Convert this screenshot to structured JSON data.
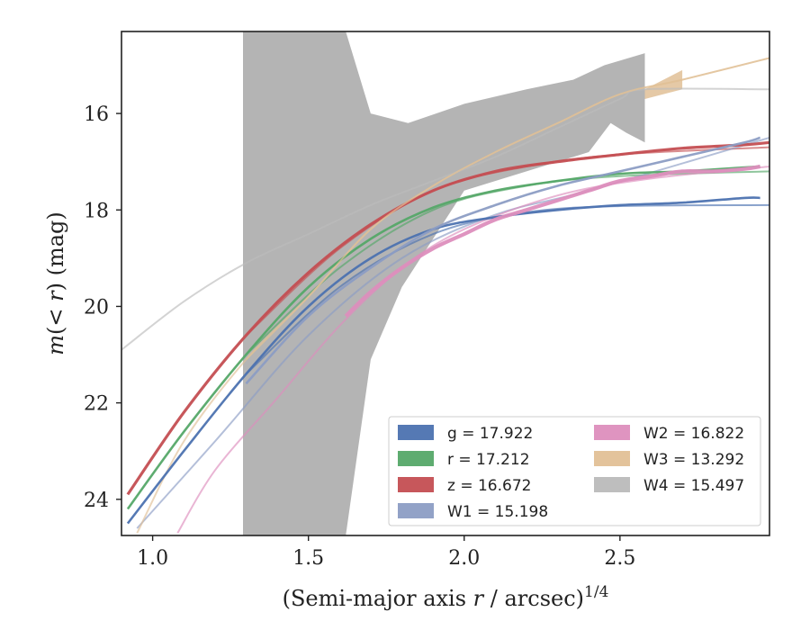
{
  "chart_data": {
    "type": "line",
    "xlabel": "(Semi-major axis r / arcsec)^1/4",
    "ylabel": "m(< r) (mag)",
    "xlim": [
      0.9,
      2.98
    ],
    "ylim": [
      24.75,
      14.3
    ],
    "x_ticks": [
      1.0,
      1.5,
      2.0,
      2.5
    ],
    "x_tick_labels": [
      "1.0",
      "1.5",
      "2.0",
      "2.5"
    ],
    "y_ticks": [
      16,
      18,
      20,
      22,
      24
    ],
    "y_tick_labels": [
      "16",
      "18",
      "20",
      "22",
      "24"
    ],
    "legend_position": "lower-right",
    "series": [
      {
        "name": "g = 17.922",
        "legend_label": "g = 17.922",
        "color": "#4c72b0",
        "x": [
          0.92,
          1.1,
          1.3,
          1.5,
          1.7,
          1.9,
          2.1,
          2.3,
          2.5,
          2.7,
          2.9,
          2.95
        ],
        "y": [
          24.5,
          23.0,
          21.4,
          20.0,
          19.0,
          18.4,
          18.15,
          18.0,
          17.9,
          17.85,
          17.75,
          17.75
        ],
        "model_x": [
          1.3,
          1.6,
          1.9,
          2.2,
          2.5,
          2.98
        ],
        "model_y": [
          21.4,
          19.6,
          18.5,
          18.05,
          17.92,
          17.9
        ]
      },
      {
        "name": "r = 17.212",
        "legend_label": "r = 17.212",
        "color": "#55a868",
        "x": [
          0.92,
          1.1,
          1.3,
          1.5,
          1.7,
          1.9,
          2.1,
          2.3,
          2.5,
          2.7,
          2.9,
          2.95
        ],
        "y": [
          24.2,
          22.6,
          21.0,
          19.6,
          18.6,
          17.95,
          17.6,
          17.4,
          17.25,
          17.2,
          17.12,
          17.1
        ],
        "model_x": [
          1.3,
          1.6,
          1.9,
          2.2,
          2.5,
          2.98
        ],
        "model_y": [
          21.0,
          19.2,
          18.0,
          17.5,
          17.3,
          17.2
        ]
      },
      {
        "name": "z = 16.672",
        "legend_label": "z = 16.672",
        "color": "#c44e52",
        "x": [
          0.92,
          1.1,
          1.3,
          1.5,
          1.7,
          1.9,
          2.1,
          2.3,
          2.5,
          2.7,
          2.9,
          2.98
        ],
        "y": [
          23.9,
          22.2,
          20.6,
          19.3,
          18.3,
          17.6,
          17.2,
          17.0,
          16.85,
          16.72,
          16.65,
          16.6
        ],
        "model_x": [
          1.3,
          1.6,
          1.9,
          2.2,
          2.5,
          2.98
        ],
        "model_y": [
          20.6,
          18.8,
          17.6,
          17.1,
          16.85,
          16.7
        ]
      },
      {
        "name": "W1 = 15.198",
        "legend_label": "W1 = 15.198",
        "color": "#8c9dc4",
        "x": [
          1.3,
          1.5,
          1.7,
          1.9,
          2.1,
          2.3,
          2.5,
          2.7,
          2.9,
          2.95
        ],
        "y": [
          21.6,
          20.2,
          19.2,
          18.4,
          17.9,
          17.5,
          17.2,
          16.9,
          16.6,
          16.5
        ],
        "model_x": [
          0.95,
          1.2,
          1.5,
          1.8,
          2.1,
          2.4,
          2.98
        ],
        "model_y": [
          24.6,
          22.8,
          20.6,
          19.0,
          18.1,
          17.6,
          16.5
        ]
      },
      {
        "name": "W2 = 16.822",
        "legend_label": "W2 = 16.822",
        "color": "#dd8ebd",
        "x": [
          1.62,
          1.7,
          1.8,
          1.9,
          2.0,
          2.1,
          2.2,
          2.3,
          2.4,
          2.5,
          2.6,
          2.7,
          2.8,
          2.9,
          2.95
        ],
        "y": [
          20.2,
          19.7,
          19.2,
          18.8,
          18.5,
          18.2,
          18.0,
          17.8,
          17.6,
          17.4,
          17.3,
          17.2,
          17.2,
          17.15,
          17.1
        ],
        "model_x": [
          1.08,
          1.2,
          1.4,
          1.6,
          1.8,
          2.0,
          2.3,
          2.6,
          2.98
        ],
        "model_y": [
          24.7,
          23.4,
          21.9,
          20.4,
          19.2,
          18.4,
          17.7,
          17.35,
          17.1
        ]
      },
      {
        "name": "W3 = 13.292",
        "legend_label": "W3 = 13.292",
        "color": "#e1c096",
        "x": [
          1.3,
          1.5,
          1.7,
          1.9,
          2.1,
          2.3,
          2.5,
          2.7,
          2.98
        ],
        "y": [
          21.1,
          19.8,
          18.4,
          17.5,
          16.8,
          16.2,
          15.6,
          15.3,
          14.85
        ],
        "model_x": [
          0.95,
          1.1,
          1.3,
          1.5,
          1.7,
          1.9,
          2.1,
          2.3,
          2.5,
          2.7,
          2.98
        ],
        "model_y": [
          24.7,
          22.8,
          21.1,
          19.8,
          18.4,
          17.5,
          16.8,
          16.2,
          15.6,
          15.3,
          14.85
        ]
      },
      {
        "name": "W4 = 15.497",
        "legend_label": "W4 = 15.497",
        "color": "#bbbbbb",
        "x": [
          1.3,
          2.58
        ],
        "y": [
          19.2,
          15.5
        ],
        "model_x": [
          0.9,
          1.1,
          1.3,
          1.5,
          1.7,
          1.9,
          2.1,
          2.3,
          2.5,
          2.58,
          2.98
        ],
        "model_y": [
          20.9,
          19.9,
          19.1,
          18.5,
          17.9,
          17.4,
          16.9,
          16.3,
          15.7,
          15.5,
          15.5
        ]
      }
    ],
    "w4_band": {
      "x_top": [
        1.29,
        1.62,
        1.7,
        1.82,
        2.0,
        2.2,
        2.35,
        2.45,
        2.58
      ],
      "y_top": [
        14.3,
        14.3,
        16.0,
        16.2,
        15.8,
        15.5,
        15.3,
        15.0,
        14.75
      ],
      "x_bottom": [
        1.29,
        1.62,
        1.7,
        1.8,
        2.0,
        2.2,
        2.4,
        2.47,
        2.52,
        2.58
      ],
      "y_bottom": [
        24.75,
        24.75,
        21.1,
        19.6,
        17.6,
        17.2,
        16.8,
        16.2,
        16.4,
        16.6
      ]
    },
    "w3_band": {
      "x": [
        2.58,
        2.7
      ],
      "y_top": [
        15.5,
        15.1
      ],
      "y_bottom": [
        15.7,
        15.5
      ]
    }
  }
}
